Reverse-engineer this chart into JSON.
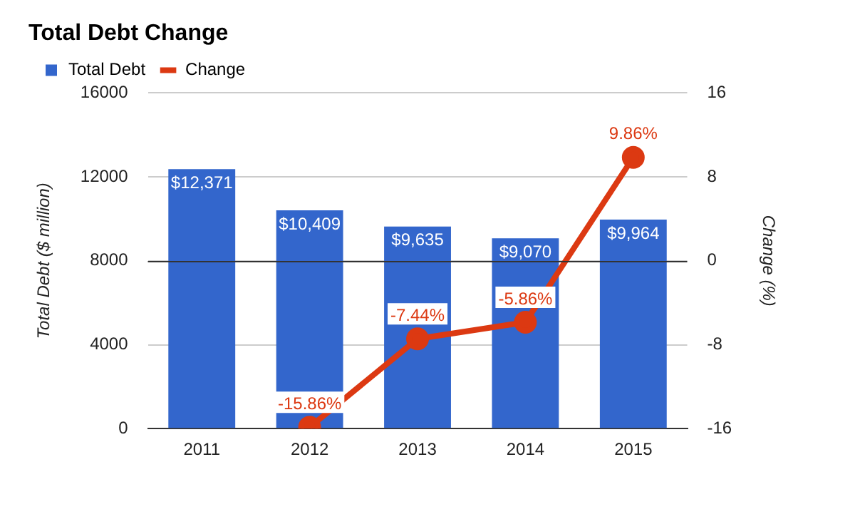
{
  "chart_data": {
    "type": "bar",
    "title": "Total Debt Change",
    "categories": [
      "2011",
      "2012",
      "2013",
      "2014",
      "2015"
    ],
    "series": [
      {
        "name": "Total Debt",
        "color": "#3366cc",
        "values": [
          12371,
          10409,
          9635,
          9070,
          9964
        ],
        "value_labels": [
          "$12,371",
          "$10,409",
          "$9,635",
          "$9,070",
          "$9,964"
        ]
      },
      {
        "name": "Change",
        "type": "line",
        "axis": "y2",
        "color": "#dc3912",
        "values": [
          null,
          -15.86,
          -7.44,
          -5.86,
          9.86
        ],
        "value_labels": [
          null,
          "-15.86%",
          "-7.44%",
          "-5.86%",
          "9.86%"
        ]
      }
    ],
    "ylabel": "Total Debt ($ million)",
    "y2label": "Change (%)",
    "ylim": [
      0,
      16000
    ],
    "yticks": [
      0,
      4000,
      8000,
      12000,
      16000
    ],
    "y2lim": [
      -16,
      16
    ],
    "y2ticks": [
      -16,
      -8,
      0,
      8,
      16
    ],
    "ref_lines": [
      {
        "axis": "y2",
        "value": 0,
        "color": "#333333"
      }
    ],
    "grid": "y",
    "legend": "top left",
    "marker": "circle"
  }
}
